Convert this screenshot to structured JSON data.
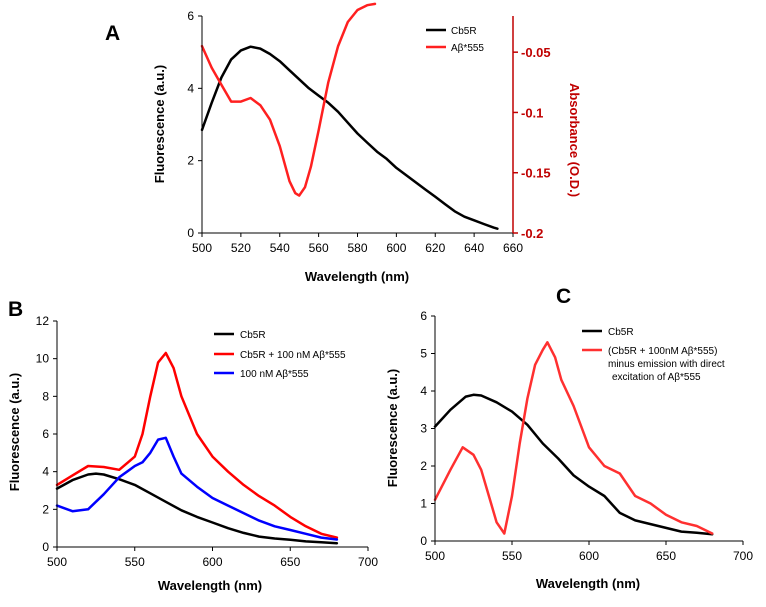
{
  "chart_data": [
    {
      "panel": "A",
      "type": "line",
      "xlabel": "Wavelength (nm)",
      "ylabel": "Fluorescence (a.u.)",
      "y2label": "Absorbance (O.D.)",
      "xlim": [
        500,
        660
      ],
      "ylim": [
        0,
        6
      ],
      "y2lim": [
        -0.2,
        -0.02
      ],
      "xticks": [
        500,
        520,
        540,
        560,
        580,
        600,
        620,
        640,
        660
      ],
      "yticks": [
        0,
        2,
        4,
        6
      ],
      "y2ticks": [
        -0.05,
        -0.1,
        -0.15,
        -0.2
      ],
      "series": [
        {
          "name": "Cb5R",
          "color": "#000000",
          "axis": "left",
          "x": [
            500,
            505,
            510,
            515,
            520,
            525,
            530,
            535,
            540,
            545,
            550,
            555,
            560,
            565,
            570,
            575,
            580,
            585,
            590,
            595,
            600,
            605,
            610,
            615,
            620,
            625,
            630,
            635,
            640,
            645,
            650,
            652
          ],
          "y": [
            2.85,
            3.6,
            4.3,
            4.8,
            5.05,
            5.15,
            5.1,
            4.95,
            4.75,
            4.5,
            4.25,
            4.0,
            3.8,
            3.6,
            3.35,
            3.05,
            2.75,
            2.5,
            2.25,
            2.05,
            1.8,
            1.6,
            1.4,
            1.2,
            1.0,
            0.8,
            0.6,
            0.45,
            0.35,
            0.25,
            0.15,
            0.12
          ]
        },
        {
          "name": "Aβ*555",
          "color": "#ff2020",
          "axis": "right",
          "x": [
            500,
            505,
            510,
            515,
            520,
            525,
            530,
            535,
            540,
            545,
            548,
            550,
            553,
            556,
            560,
            565,
            570,
            575,
            580,
            585,
            589
          ],
          "y": [
            -0.045,
            -0.063,
            -0.077,
            -0.091,
            -0.091,
            -0.088,
            -0.094,
            -0.106,
            -0.128,
            -0.157,
            -0.167,
            -0.169,
            -0.162,
            -0.145,
            -0.115,
            -0.075,
            -0.045,
            -0.025,
            -0.015,
            -0.011,
            -0.01
          ]
        }
      ]
    },
    {
      "panel": "B",
      "type": "line",
      "xlabel": "Wavelength (nm)",
      "ylabel": "Fluorescence (a.u.)",
      "xlim": [
        500,
        700
      ],
      "ylim": [
        0,
        12
      ],
      "xticks": [
        500,
        550,
        600,
        650,
        700
      ],
      "yticks": [
        0,
        2,
        4,
        6,
        8,
        10,
        12
      ],
      "series": [
        {
          "name": "Cb5R",
          "color": "#000000",
          "x": [
            500,
            510,
            520,
            525,
            530,
            540,
            550,
            560,
            570,
            580,
            590,
            600,
            610,
            620,
            630,
            640,
            650,
            660,
            670,
            680
          ],
          "y": [
            3.1,
            3.55,
            3.85,
            3.9,
            3.85,
            3.6,
            3.3,
            2.85,
            2.4,
            1.95,
            1.6,
            1.3,
            1.0,
            0.75,
            0.55,
            0.45,
            0.38,
            0.3,
            0.25,
            0.2
          ]
        },
        {
          "name": "Cb5R + 100 nM Aβ*555",
          "color": "#ff0000",
          "x": [
            500,
            510,
            520,
            530,
            540,
            550,
            555,
            560,
            565,
            570,
            575,
            580,
            590,
            600,
            610,
            620,
            630,
            640,
            650,
            660,
            670,
            680
          ],
          "y": [
            3.3,
            3.8,
            4.3,
            4.25,
            4.1,
            4.8,
            6.0,
            8.0,
            9.8,
            10.3,
            9.5,
            8.0,
            6.0,
            4.8,
            4.0,
            3.3,
            2.7,
            2.2,
            1.6,
            1.1,
            0.7,
            0.5
          ]
        },
        {
          "name": "100 nM Aβ*555",
          "color": "#0000ff",
          "x": [
            500,
            510,
            520,
            530,
            540,
            550,
            555,
            560,
            565,
            570,
            575,
            580,
            590,
            600,
            610,
            620,
            630,
            640,
            650,
            660,
            670,
            680
          ],
          "y": [
            2.2,
            1.9,
            2.0,
            2.8,
            3.7,
            4.3,
            4.5,
            5.0,
            5.7,
            5.8,
            4.8,
            3.9,
            3.2,
            2.6,
            2.2,
            1.8,
            1.4,
            1.1,
            0.9,
            0.7,
            0.5,
            0.4
          ]
        }
      ]
    },
    {
      "panel": "C",
      "type": "line",
      "xlabel": "Wavelength (nm)",
      "ylabel": "Fluorescence (a.u.)",
      "xlim": [
        500,
        700
      ],
      "ylim": [
        0,
        6
      ],
      "xticks": [
        500,
        550,
        600,
        650,
        700
      ],
      "yticks": [
        0,
        1,
        2,
        3,
        4,
        5,
        6
      ],
      "series": [
        {
          "name": "Cb5R",
          "color": "#000000",
          "x": [
            500,
            510,
            520,
            525,
            530,
            540,
            550,
            560,
            570,
            580,
            590,
            600,
            610,
            620,
            630,
            640,
            650,
            660,
            670,
            680
          ],
          "y": [
            3.05,
            3.5,
            3.85,
            3.9,
            3.88,
            3.7,
            3.45,
            3.1,
            2.6,
            2.2,
            1.75,
            1.45,
            1.2,
            0.75,
            0.55,
            0.45,
            0.35,
            0.25,
            0.22,
            0.18
          ]
        },
        {
          "name": "(Cb5R + 100nM Aβ*555) minus emission with direct excitation of Aβ*555",
          "color": "#ff3030",
          "x": [
            500,
            510,
            518,
            525,
            530,
            535,
            540,
            545,
            550,
            555,
            560,
            565,
            570,
            573,
            578,
            582,
            590,
            600,
            610,
            620,
            630,
            640,
            650,
            660,
            670,
            680
          ],
          "y": [
            1.1,
            1.9,
            2.5,
            2.3,
            1.9,
            1.2,
            0.5,
            0.2,
            1.2,
            2.6,
            3.8,
            4.7,
            5.1,
            5.3,
            4.9,
            4.3,
            3.6,
            2.5,
            2.0,
            1.8,
            1.2,
            1.0,
            0.7,
            0.5,
            0.4,
            0.2
          ]
        }
      ]
    }
  ],
  "labels": {
    "panel_a": "A",
    "panel_b": "B",
    "panel_c": "C",
    "legend_a": [
      "Cb5R",
      "Aβ*555"
    ],
    "legend_b": [
      "Cb5R",
      "Cb5R + 100 nM Aβ*555",
      "100 nM Aβ*555"
    ],
    "legend_c": [
      "Cb5R",
      "(Cb5R + 100nM Aβ*555)",
      "minus emission with direct",
      "excitation of Aβ*555"
    ]
  }
}
